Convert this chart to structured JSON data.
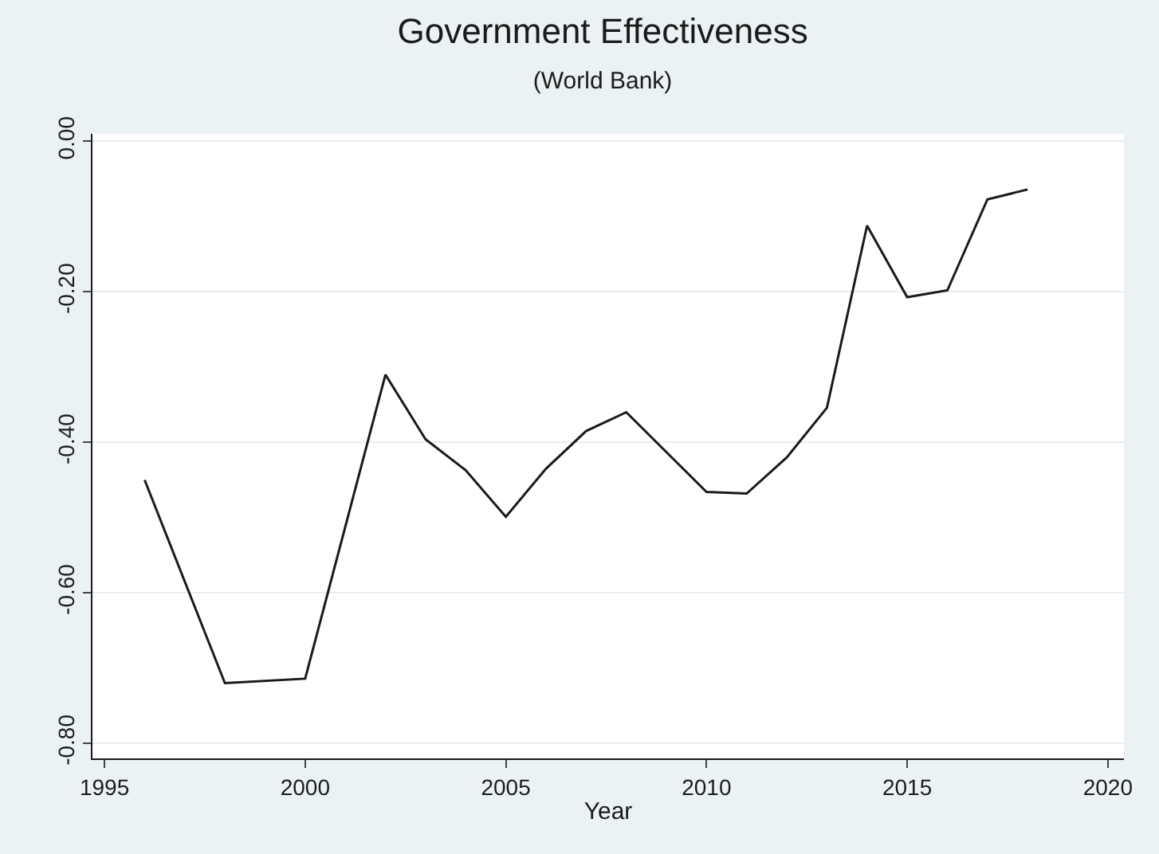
{
  "chart_data": {
    "type": "line",
    "title": "Government Effectiveness",
    "subtitle": "(World Bank)",
    "xlabel": "Year",
    "x": [
      1996,
      1998,
      2000,
      2002,
      2003,
      2004,
      2005,
      2006,
      2007,
      2008,
      2009,
      2010,
      2011,
      2012,
      2013,
      2014,
      2015,
      2016,
      2017,
      2018
    ],
    "series": [
      {
        "color": "#1a1a1a",
        "values": [
          -0.45,
          -0.72,
          -0.714,
          -0.31,
          -0.396,
          -0.437,
          -0.499,
          -0.435,
          -0.385,
          -0.36,
          -0.413,
          -0.466,
          -0.468,
          -0.42,
          -0.354,
          -0.112,
          -0.207,
          -0.198,
          -0.077,
          -0.064
        ]
      }
    ],
    "xlim": [
      1994.7,
      2020.4
    ],
    "xticks": [
      1995,
      2000,
      2005,
      2010,
      2015,
      2020
    ],
    "ylim": [
      -0.82,
      0.01
    ],
    "yticks": [
      {
        "value": 0,
        "label": "0.00"
      },
      {
        "value": -0.2,
        "label": "-0.20"
      },
      {
        "value": -0.4,
        "label": "-0.40"
      },
      {
        "value": -0.6,
        "label": "-0.60"
      },
      {
        "value": -0.8,
        "label": "-0.80"
      }
    ],
    "grid": "y",
    "marker": "none",
    "line_style": "solid"
  }
}
